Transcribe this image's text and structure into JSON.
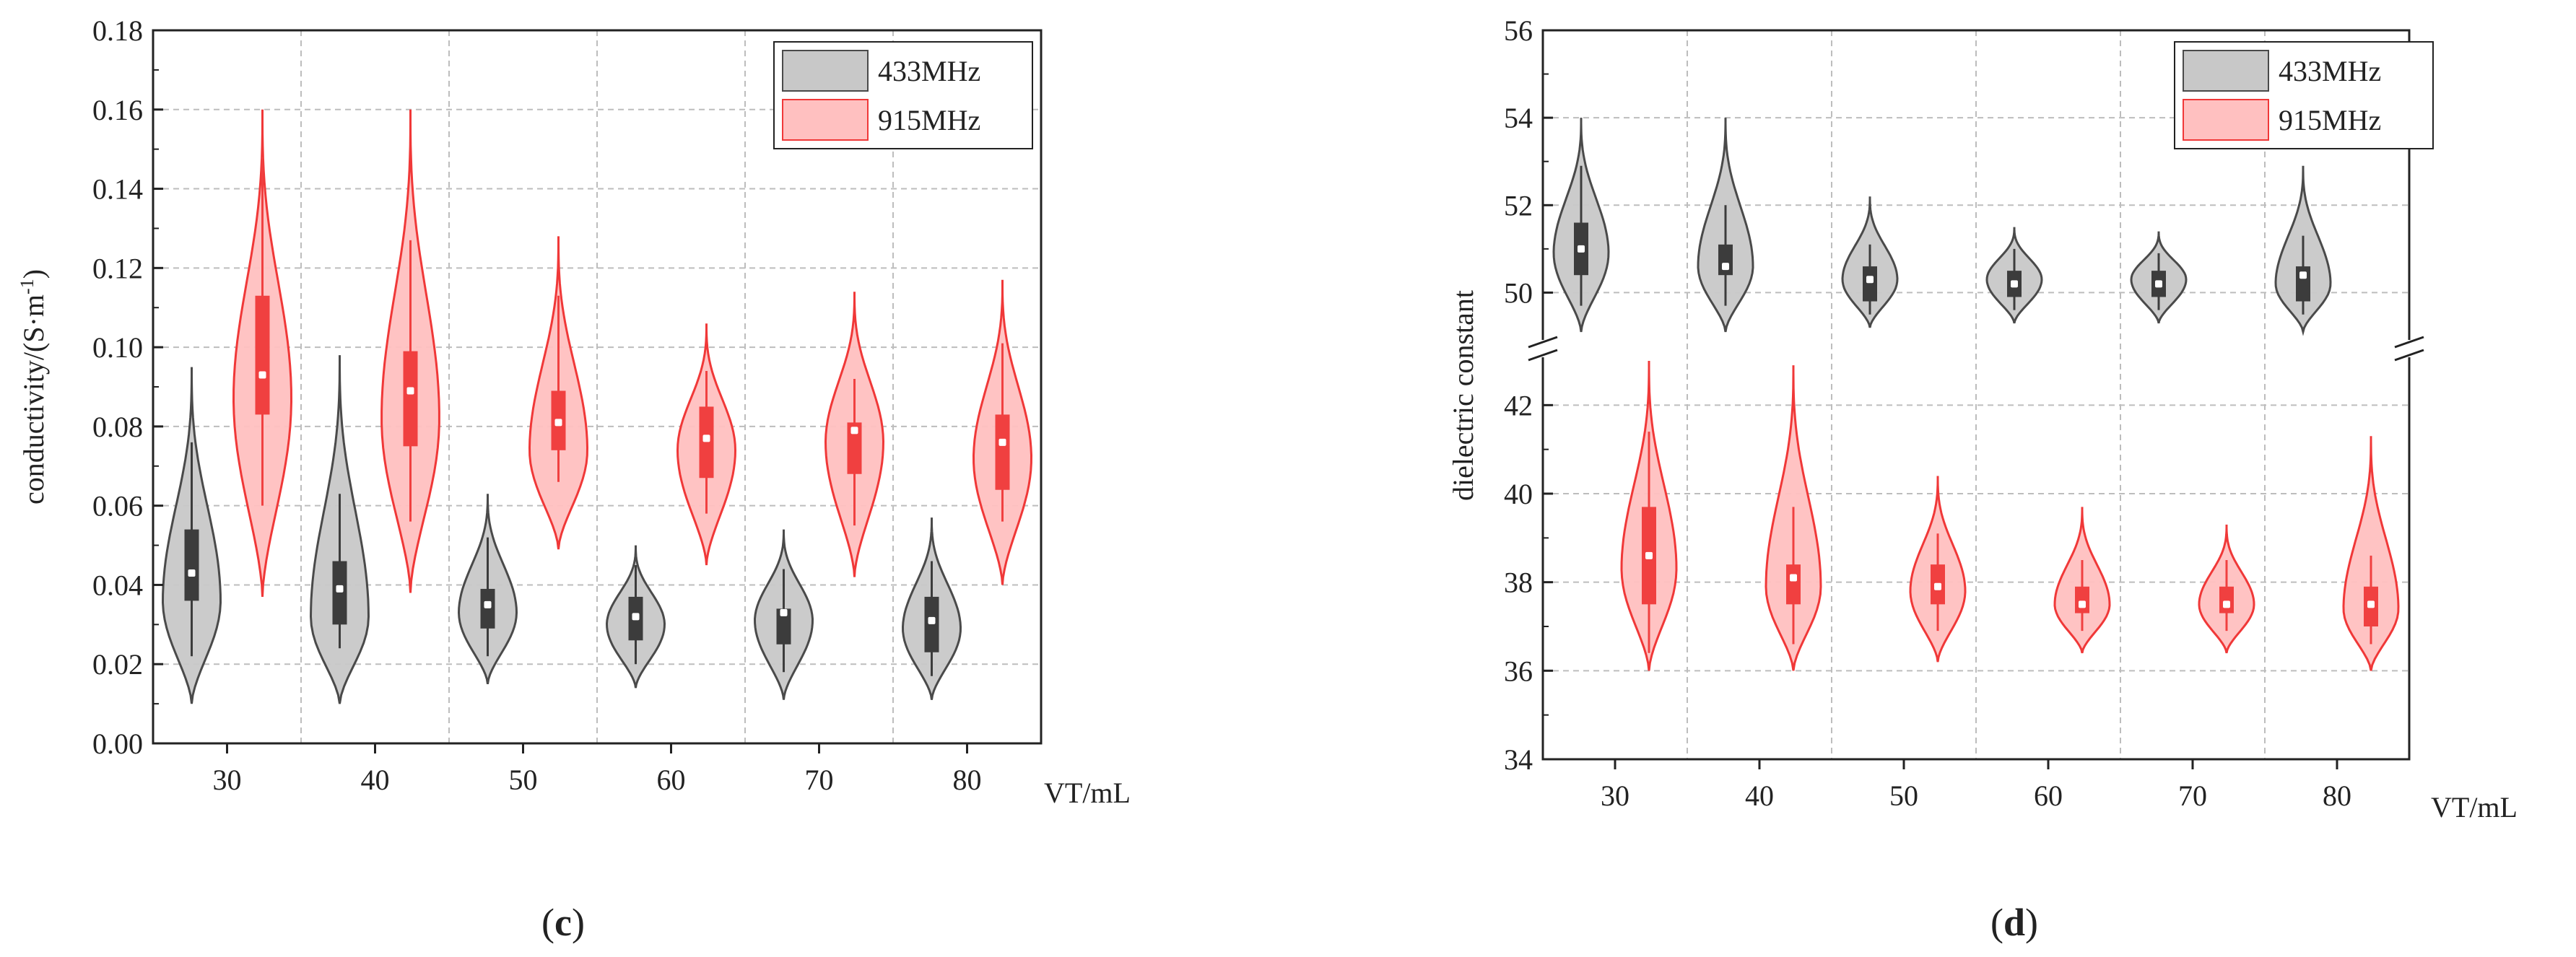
{
  "chart_data": [
    {
      "type": "violin",
      "panel_label": "c",
      "caption_open": "(",
      "caption_close": ")",
      "xlabel": "VT/mL",
      "ylabel": "conductivity/(S·m",
      "ylabel_superscript": "-1",
      "ylabel_close": ")",
      "ylim": [
        0,
        0.18
      ],
      "yticks": [
        "0.00",
        "0.02",
        "0.04",
        "0.06",
        "0.08",
        "0.10",
        "0.12",
        "0.14",
        "0.16",
        "0.18"
      ],
      "ytick_values": [
        0,
        0.02,
        0.04,
        0.06,
        0.08,
        0.1,
        0.12,
        0.14,
        0.16,
        0.18
      ],
      "categories": [
        "30",
        "40",
        "50",
        "60",
        "70",
        "80"
      ],
      "legend": [
        "433MHz",
        "915MHz"
      ],
      "series": [
        {
          "name": "433MHz",
          "fill": "#c8c8c8",
          "stroke": "#4a4a4a",
          "box": "#3c3c3c",
          "violins": [
            {
              "min": 0.01,
              "max": 0.095,
              "q1": 0.036,
              "median": 0.043,
              "q3": 0.054,
              "wlo": 0.022,
              "whi": 0.076,
              "peak": 0.036
            },
            {
              "min": 0.01,
              "max": 0.098,
              "q1": 0.03,
              "median": 0.039,
              "q3": 0.046,
              "wlo": 0.024,
              "whi": 0.063,
              "peak": 0.032
            },
            {
              "min": 0.015,
              "max": 0.063,
              "q1": 0.029,
              "median": 0.035,
              "q3": 0.039,
              "wlo": 0.022,
              "whi": 0.052,
              "peak": 0.033
            },
            {
              "min": 0.014,
              "max": 0.05,
              "q1": 0.026,
              "median": 0.032,
              "q3": 0.037,
              "wlo": 0.02,
              "whi": 0.045,
              "peak": 0.03
            },
            {
              "min": 0.011,
              "max": 0.054,
              "q1": 0.025,
              "median": 0.033,
              "q3": 0.034,
              "wlo": 0.018,
              "whi": 0.044,
              "peak": 0.031
            },
            {
              "min": 0.011,
              "max": 0.057,
              "q1": 0.023,
              "median": 0.031,
              "q3": 0.037,
              "wlo": 0.017,
              "whi": 0.046,
              "peak": 0.029
            }
          ]
        },
        {
          "name": "915MHz",
          "fill": "#ffc0c0",
          "stroke": "#f03838",
          "box": "#f04040",
          "violins": [
            {
              "min": 0.037,
              "max": 0.16,
              "q1": 0.083,
              "median": 0.093,
              "q3": 0.113,
              "wlo": 0.06,
              "whi": 0.148,
              "peak": 0.087
            },
            {
              "min": 0.038,
              "max": 0.16,
              "q1": 0.075,
              "median": 0.089,
              "q3": 0.099,
              "wlo": 0.056,
              "whi": 0.127,
              "peak": 0.082
            },
            {
              "min": 0.049,
              "max": 0.128,
              "q1": 0.074,
              "median": 0.081,
              "q3": 0.089,
              "wlo": 0.066,
              "whi": 0.113,
              "peak": 0.074
            },
            {
              "min": 0.045,
              "max": 0.106,
              "q1": 0.067,
              "median": 0.077,
              "q3": 0.085,
              "wlo": 0.058,
              "whi": 0.094,
              "peak": 0.074
            },
            {
              "min": 0.042,
              "max": 0.114,
              "q1": 0.068,
              "median": 0.079,
              "q3": 0.081,
              "wlo": 0.055,
              "whi": 0.092,
              "peak": 0.076
            },
            {
              "min": 0.04,
              "max": 0.117,
              "q1": 0.064,
              "median": 0.076,
              "q3": 0.083,
              "wlo": 0.056,
              "whi": 0.101,
              "peak": 0.072
            }
          ]
        }
      ]
    },
    {
      "type": "violin",
      "panel_label": "d",
      "caption_open": "(",
      "caption_close": ")",
      "xlabel": "VT/mL",
      "ylabel": "dielectric constant",
      "axis_break": [
        43.0,
        49.0
      ],
      "ylim": [
        34,
        56
      ],
      "yticks_upper": [
        "50",
        "52",
        "54",
        "56"
      ],
      "ytick_values_upper": [
        50,
        52,
        54,
        56
      ],
      "yticks_lower": [
        "34",
        "36",
        "38",
        "40",
        "42"
      ],
      "ytick_values_lower": [
        34,
        36,
        38,
        40,
        42
      ],
      "categories": [
        "30",
        "40",
        "50",
        "60",
        "70",
        "80"
      ],
      "legend": [
        "433MHz",
        "915MHz"
      ],
      "series": [
        {
          "name": "433MHz",
          "fill": "#c8c8c8",
          "stroke": "#4a4a4a",
          "box": "#3c3c3c",
          "violins": [
            {
              "min": 49.1,
              "max": 54.0,
              "q1": 50.4,
              "median": 51.0,
              "q3": 51.6,
              "wlo": 49.7,
              "whi": 52.9,
              "peak": 50.9
            },
            {
              "min": 49.1,
              "max": 54.0,
              "q1": 50.4,
              "median": 50.6,
              "q3": 51.1,
              "wlo": 49.7,
              "whi": 52.0,
              "peak": 50.6
            },
            {
              "min": 49.2,
              "max": 52.2,
              "q1": 49.8,
              "median": 50.3,
              "q3": 50.6,
              "wlo": 49.5,
              "whi": 51.1,
              "peak": 50.3
            },
            {
              "min": 49.3,
              "max": 51.5,
              "q1": 49.9,
              "median": 50.2,
              "q3": 50.5,
              "wlo": 49.6,
              "whi": 51.0,
              "peak": 50.3
            },
            {
              "min": 49.3,
              "max": 51.4,
              "q1": 49.9,
              "median": 50.2,
              "q3": 50.5,
              "wlo": 49.6,
              "whi": 50.9,
              "peak": 50.3
            },
            {
              "min": 49.1,
              "max": 52.9,
              "q1": 49.8,
              "median": 50.4,
              "q3": 50.6,
              "wlo": 49.5,
              "whi": 51.3,
              "peak": 50.2
            }
          ]
        },
        {
          "name": "915MHz",
          "fill": "#ffc0c0",
          "stroke": "#f03838",
          "box": "#f04040",
          "violins": [
            {
              "min": 36.0,
              "max": 43.0,
              "q1": 37.5,
              "median": 38.6,
              "q3": 39.7,
              "wlo": 36.4,
              "whi": 41.4,
              "peak": 38.3
            },
            {
              "min": 36.0,
              "max": 42.9,
              "q1": 37.5,
              "median": 38.1,
              "q3": 38.4,
              "wlo": 36.6,
              "whi": 39.7,
              "peak": 37.9
            },
            {
              "min": 36.2,
              "max": 40.4,
              "q1": 37.5,
              "median": 37.9,
              "q3": 38.4,
              "wlo": 36.9,
              "whi": 39.1,
              "peak": 37.8
            },
            {
              "min": 36.4,
              "max": 39.7,
              "q1": 37.3,
              "median": 37.5,
              "q3": 37.9,
              "wlo": 36.9,
              "whi": 38.5,
              "peak": 37.5
            },
            {
              "min": 36.4,
              "max": 39.3,
              "q1": 37.3,
              "median": 37.5,
              "q3": 37.9,
              "wlo": 36.9,
              "whi": 38.5,
              "peak": 37.5
            },
            {
              "min": 36.0,
              "max": 41.3,
              "q1": 37.0,
              "median": 37.5,
              "q3": 37.9,
              "wlo": 36.6,
              "whi": 38.6,
              "peak": 37.4
            }
          ]
        }
      ]
    }
  ]
}
